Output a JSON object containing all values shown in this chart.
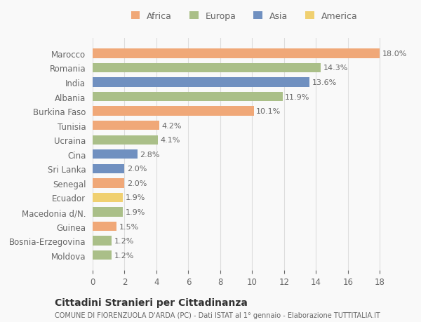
{
  "categories": [
    "Marocco",
    "Romania",
    "India",
    "Albania",
    "Burkina Faso",
    "Tunisia",
    "Ucraina",
    "Cina",
    "Sri Lanka",
    "Senegal",
    "Ecuador",
    "Macedonia d/N.",
    "Guinea",
    "Bosnia-Erzegovina",
    "Moldova"
  ],
  "values": [
    18.0,
    14.3,
    13.6,
    11.9,
    10.1,
    4.2,
    4.1,
    2.8,
    2.0,
    2.0,
    1.9,
    1.9,
    1.5,
    1.2,
    1.2
  ],
  "continents": [
    "Africa",
    "Europa",
    "Asia",
    "Europa",
    "Africa",
    "Africa",
    "Europa",
    "Asia",
    "Asia",
    "Africa",
    "America",
    "Europa",
    "Africa",
    "Europa",
    "Europa"
  ],
  "colors": {
    "Africa": "#F0A878",
    "Europa": "#AABF88",
    "Asia": "#7090C0",
    "America": "#F0D070"
  },
  "legend_order": [
    "Africa",
    "Europa",
    "Asia",
    "America"
  ],
  "xlim": [
    0,
    19
  ],
  "xticks": [
    0,
    2,
    4,
    6,
    8,
    10,
    12,
    14,
    16,
    18
  ],
  "title": "Cittadini Stranieri per Cittadinanza",
  "subtitle": "COMUNE DI FIORENZUOLA D'ARDA (PC) - Dati ISTAT al 1° gennaio - Elaborazione TUTTITALIA.IT",
  "bg_color": "#f9f9f9",
  "bar_height": 0.65,
  "grid_color": "#dddddd",
  "text_color": "#666666"
}
